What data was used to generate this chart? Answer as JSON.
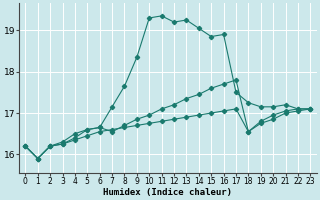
{
  "xlabel": "Humidex (Indice chaleur)",
  "bg_color": "#cce8eb",
  "grid_color": "#ffffff",
  "line_color": "#1a7a6e",
  "x_ticks": [
    0,
    1,
    2,
    3,
    4,
    5,
    6,
    7,
    8,
    9,
    10,
    11,
    12,
    13,
    14,
    15,
    16,
    17,
    18,
    19,
    20,
    21,
    22,
    23
  ],
  "y_ticks": [
    16,
    17,
    18,
    19
  ],
  "xlim": [
    -0.5,
    23.5
  ],
  "ylim": [
    15.55,
    19.65
  ],
  "series1_x": [
    0,
    1,
    2,
    3,
    4,
    5,
    6,
    7,
    8,
    9,
    10,
    11,
    12,
    13,
    14,
    15,
    16,
    17,
    18,
    19,
    20,
    21,
    22,
    23
  ],
  "series1_y": [
    16.2,
    15.9,
    16.2,
    16.25,
    16.35,
    16.45,
    16.55,
    16.6,
    16.65,
    16.7,
    16.75,
    16.8,
    16.85,
    16.9,
    16.95,
    17.0,
    17.05,
    17.1,
    16.55,
    16.75,
    16.85,
    17.0,
    17.05,
    17.1
  ],
  "series2_x": [
    0,
    1,
    2,
    3,
    4,
    5,
    6,
    7,
    8,
    9,
    10,
    11,
    12,
    13,
    14,
    15,
    16,
    17,
    18,
    19,
    20,
    21,
    22,
    23
  ],
  "series2_y": [
    16.2,
    15.9,
    16.2,
    16.25,
    16.4,
    16.6,
    16.65,
    16.55,
    16.7,
    16.85,
    16.95,
    17.1,
    17.2,
    17.35,
    17.45,
    17.6,
    17.7,
    17.8,
    16.55,
    16.8,
    16.95,
    17.05,
    17.1,
    17.1
  ],
  "series3_x": [
    0,
    1,
    2,
    3,
    4,
    5,
    6,
    7,
    8,
    9,
    10,
    11,
    12,
    13,
    14,
    15,
    16,
    17,
    18,
    19,
    20,
    21,
    22,
    23
  ],
  "series3_y": [
    16.2,
    15.9,
    16.2,
    16.3,
    16.5,
    16.6,
    16.65,
    17.15,
    17.65,
    18.35,
    19.3,
    19.35,
    19.2,
    19.25,
    19.05,
    18.85,
    18.9,
    17.5,
    17.25,
    17.15,
    17.15,
    17.2,
    17.1,
    17.1
  ]
}
